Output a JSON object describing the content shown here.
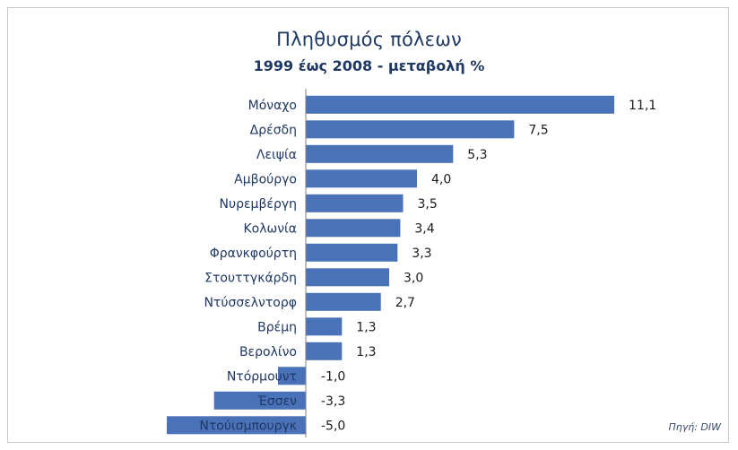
{
  "chart_data": {
    "type": "bar",
    "orientation": "horizontal",
    "title": "Πληθυσμός πόλεων",
    "subtitle": "1999 έως 2008 - μεταβολή %",
    "categories": [
      "Μόναχο",
      "Δρέσδη",
      "Λειψία",
      "Αμβούργο",
      "Νυρεμβέργη",
      "Κολωνία",
      "Φρανκφούρτη",
      "Στουττγκάρδη",
      "Ντύσσελντορφ",
      "Βρέμη",
      "Βερολίνο",
      "Ντόρμουντ",
      "Έσσεν",
      "Ντούισμπουργκ"
    ],
    "values": [
      11.1,
      7.5,
      5.3,
      4.0,
      3.5,
      3.4,
      3.3,
      3.0,
      2.7,
      1.3,
      1.3,
      -1.0,
      -3.3,
      -5.0
    ],
    "value_labels": [
      "11,1",
      "7,5",
      "5,3",
      "4,0",
      "3,5",
      "3,4",
      "3,3",
      "3,0",
      "2,7",
      "1,3",
      "1,3",
      "-1,0",
      "-3,3",
      "-5,0"
    ],
    "xlim": [
      -5,
      11.1
    ],
    "bar_color": "#4a72b8",
    "grid": false,
    "legend": "none"
  },
  "source_note": "Πηγή: DIW"
}
